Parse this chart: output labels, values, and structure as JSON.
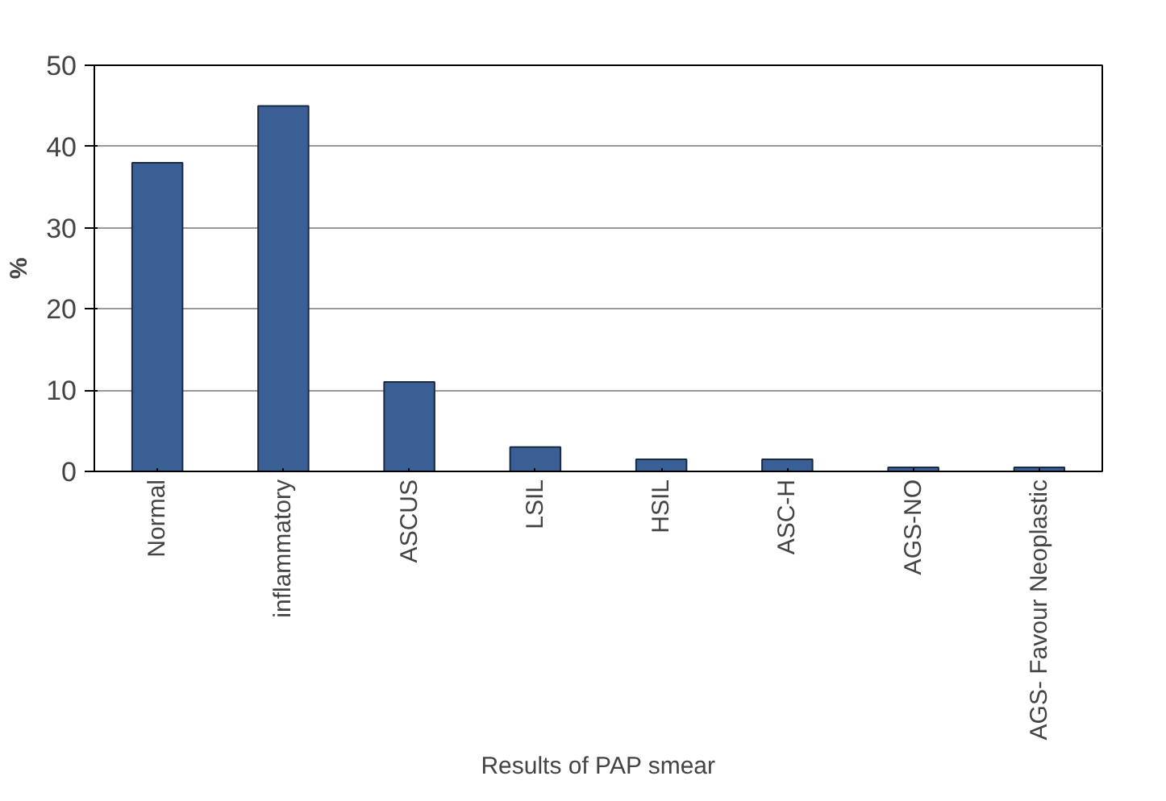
{
  "chart_data": {
    "type": "bar",
    "xlabel": "Results of PAP smear",
    "ylabel": "%",
    "categories": [
      "Normal",
      "inflammatory",
      "ASCUS",
      "LSIL",
      "HSIL",
      "ASC-H",
      "AGS-NO",
      "AGS- Favour Neoplastic"
    ],
    "values": [
      38,
      45,
      11,
      3,
      1.5,
      1.5,
      0.5,
      0.5
    ],
    "color": "#3a5f94",
    "ylim": [
      0,
      50
    ],
    "yticks": [
      0,
      10,
      20,
      30,
      40,
      50
    ],
    "grid": "y"
  }
}
